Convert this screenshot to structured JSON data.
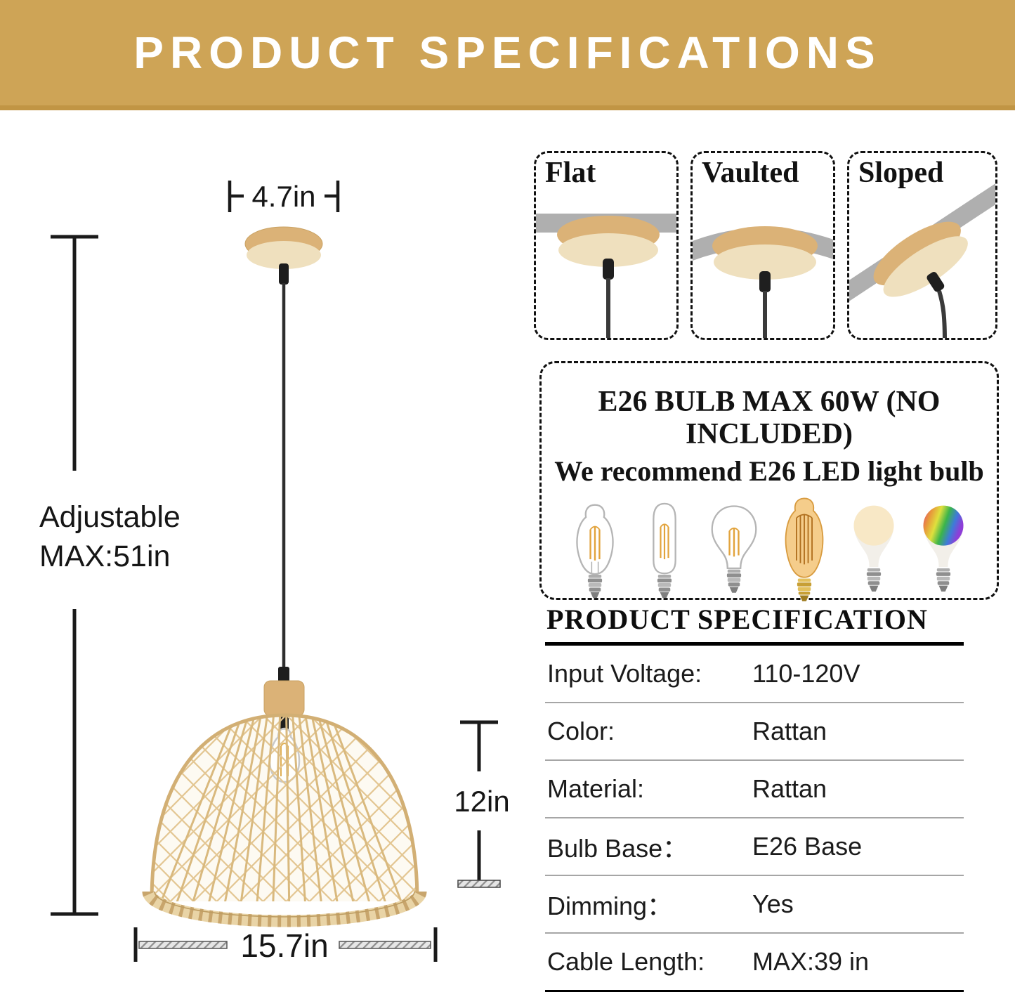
{
  "header": {
    "title": "PRODUCT SPECIFICATIONS"
  },
  "colors": {
    "banner_gold": "#CEA456",
    "banner_edge": "#C19544",
    "wood": "#DBB277",
    "wood_underside": "#EFE0BE",
    "rattan_weave": "#E3C692",
    "rattan_rib": "#D9B97E",
    "ceiling_gray": "#AFAFAF",
    "cord_black": "#3A3A3A",
    "filament_amber": "#E2A33C"
  },
  "diagram": {
    "canopy_width_label": "4.7in",
    "adjustable_label_line1": "Adjustable",
    "adjustable_label_line2": "MAX:51in",
    "shade_height_label": "12in",
    "shade_diameter_label": "15.7in"
  },
  "ceiling_types": {
    "items": [
      {
        "label": "Flat"
      },
      {
        "label": "Vaulted"
      },
      {
        "label": "Sloped"
      }
    ]
  },
  "bulb_box": {
    "title": "E26 BULB MAX 60W (NO INCLUDED)",
    "subtitle": "We recommend E26 LED light bulb",
    "bulbs": [
      {
        "icon": "st64-filament-bulb-icon"
      },
      {
        "icon": "t45-filament-bulb-icon"
      },
      {
        "icon": "a19-filament-bulb-icon"
      },
      {
        "icon": "amber-edison-bulb-icon"
      },
      {
        "icon": "soft-white-led-bulb-icon"
      },
      {
        "icon": "rgb-smart-bulb-icon"
      }
    ]
  },
  "spec_table": {
    "title": "PRODUCT SPECIFICATION",
    "rows": [
      {
        "label": "Input Voltage:",
        "value": "110-120V"
      },
      {
        "label": "Color:",
        "value": "Rattan"
      },
      {
        "label": "Material:",
        "value": "Rattan"
      },
      {
        "label": "Bulb Base：",
        "value": "E26 Base"
      },
      {
        "label": "Dimming：",
        "value": "Yes"
      },
      {
        "label": "Cable Length:",
        "value": "MAX:39 in"
      }
    ]
  }
}
